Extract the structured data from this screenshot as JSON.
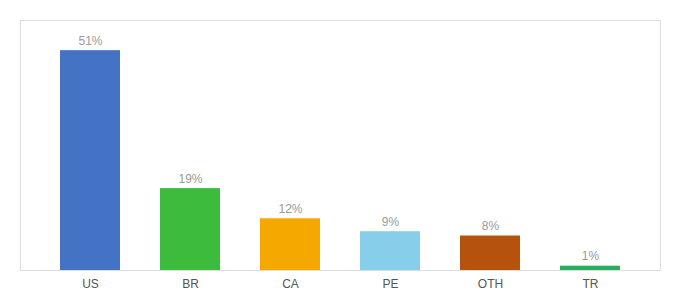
{
  "chart_data": {
    "type": "bar",
    "categories": [
      "US",
      "BR",
      "CA",
      "PE",
      "OTH",
      "TR"
    ],
    "values": [
      51,
      19,
      12,
      9,
      8,
      1
    ],
    "value_labels": [
      "51%",
      "19%",
      "12%",
      "9%",
      "8%",
      "1%"
    ],
    "colors": [
      "#4472c4",
      "#3dbb3d",
      "#f5a800",
      "#87ceeb",
      "#b5520d",
      "#27ae60"
    ],
    "ylim": [
      0,
      58
    ],
    "data_labels": true,
    "tick_labels": "x",
    "grid": false
  }
}
